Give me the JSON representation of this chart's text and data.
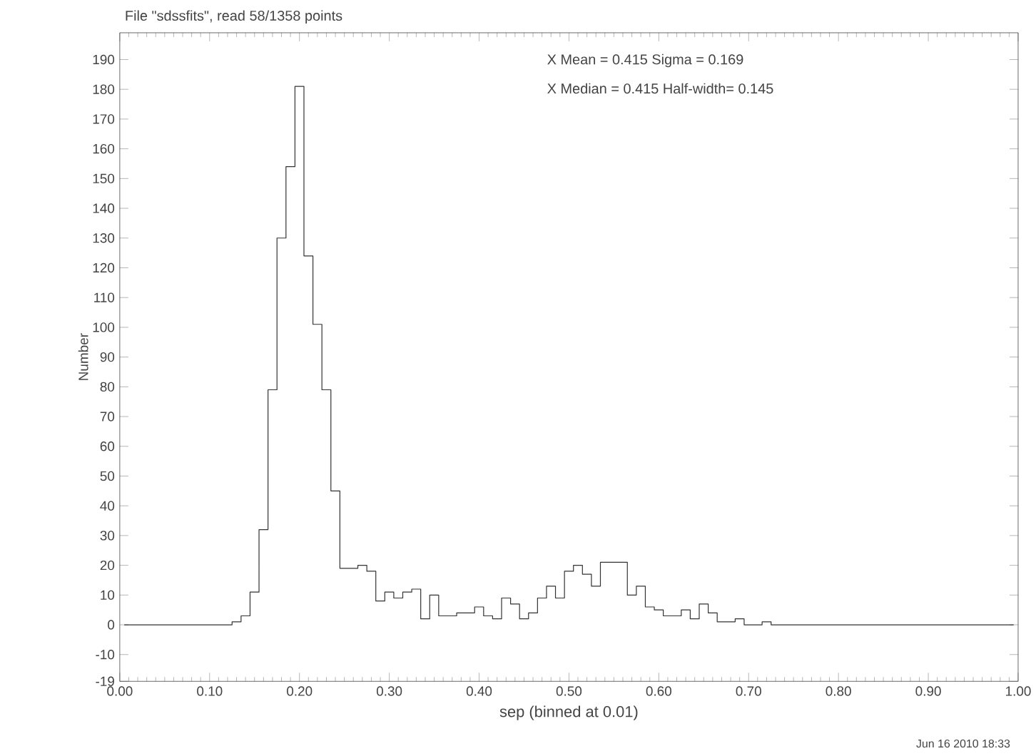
{
  "chart_data": {
    "type": "histogram",
    "title": "File \"sdssfits\", read 58/1358 points",
    "xlabel": "sep (binned at 0.01)",
    "ylabel": "Number",
    "annotations": [
      "X Mean = 0.415 Sigma = 0.169",
      "X Median = 0.415 Half-width= 0.145",
      "Jun 16 2010 18:33"
    ],
    "color": "#333333",
    "bins": [
      0.005,
      0.015,
      0.025,
      0.035,
      0.045,
      0.055,
      0.065,
      0.075,
      0.085,
      0.095,
      0.105,
      0.115,
      0.125,
      0.135,
      0.145,
      0.155,
      0.165,
      0.175,
      0.185,
      0.195,
      0.205,
      0.215,
      0.225,
      0.235,
      0.245,
      0.255,
      0.265,
      0.275,
      0.285,
      0.295,
      0.305,
      0.315,
      0.325,
      0.335,
      0.345,
      0.355,
      0.365,
      0.375,
      0.385,
      0.395,
      0.405,
      0.415,
      0.425,
      0.435,
      0.445,
      0.455,
      0.465,
      0.475,
      0.485,
      0.495,
      0.505,
      0.515,
      0.525,
      0.535,
      0.545,
      0.555,
      0.565,
      0.575,
      0.585,
      0.595,
      0.605,
      0.615,
      0.625,
      0.635,
      0.645,
      0.655,
      0.665,
      0.675,
      0.685,
      0.695,
      0.705,
      0.715,
      0.725,
      0.735,
      0.745,
      0.755,
      0.765,
      0.775,
      0.785,
      0.795,
      0.805,
      0.815,
      0.825,
      0.835,
      0.845,
      0.855,
      0.865,
      0.875,
      0.885,
      0.895,
      0.905,
      0.915,
      0.925,
      0.935,
      0.945,
      0.955,
      0.965,
      0.975,
      0.985,
      0.995
    ],
    "values": [
      0,
      0,
      0,
      0,
      0,
      0,
      0,
      0,
      0,
      0,
      0,
      0,
      1,
      3,
      11,
      32,
      79,
      130,
      154,
      181,
      124,
      101,
      79,
      45,
      19,
      19,
      20,
      18,
      8,
      11,
      9,
      11,
      12,
      2,
      10,
      3,
      3,
      4,
      4,
      6,
      3,
      2,
      9,
      7,
      2,
      4,
      9,
      13,
      9,
      18,
      20,
      17,
      13,
      21,
      21,
      21,
      10,
      13,
      6,
      5,
      3,
      3,
      5,
      2,
      7,
      4,
      1,
      1,
      2,
      0,
      0,
      1,
      0,
      0,
      0,
      0,
      0,
      0,
      0,
      0,
      0,
      0,
      0,
      0,
      0,
      0,
      0,
      0,
      0,
      0,
      0,
      0,
      0,
      0,
      0,
      0,
      0,
      0,
      0
    ],
    "xlim": [
      0,
      1
    ],
    "ylim": [
      -19,
      199
    ],
    "xticks": [
      {
        "value": 0,
        "label": "0.00"
      },
      {
        "value": 0.1,
        "label": "0.10"
      },
      {
        "value": 0.2,
        "label": "0.20"
      },
      {
        "value": 0.3,
        "label": "0.30"
      },
      {
        "value": 0.4,
        "label": "0.40"
      },
      {
        "value": 0.5,
        "label": "0.50"
      },
      {
        "value": 0.6,
        "label": "0.60"
      },
      {
        "value": 0.7,
        "label": "0.70"
      },
      {
        "value": 0.8,
        "label": "0.80"
      },
      {
        "value": 0.9,
        "label": "0.90"
      },
      {
        "value": 1,
        "label": "1.00"
      }
    ],
    "yticks": [
      -19,
      -10,
      0,
      10,
      20,
      30,
      40,
      50,
      60,
      70,
      80,
      90,
      100,
      110,
      120,
      130,
      140,
      150,
      160,
      170,
      180,
      190
    ]
  }
}
